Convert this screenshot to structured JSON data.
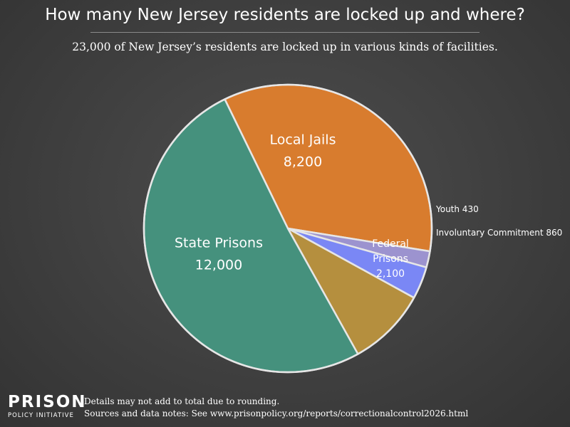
{
  "header": {
    "title": "How many New Jersey residents are locked up and where?",
    "subtitle": "23,000 of New Jersey’s residents are locked up in various kinds of facilities."
  },
  "chart_data": {
    "type": "pie",
    "slices": [
      {
        "label_lines": [
          "Local Jails",
          "8,200"
        ],
        "value": 8200,
        "color": "#d87c2e"
      },
      {
        "label_lines": [
          "Youth 430"
        ],
        "value": 430,
        "color": "#9c93cf"
      },
      {
        "label_lines": [
          "Involuntary Commitment 860"
        ],
        "value": 860,
        "color": "#7a87f5"
      },
      {
        "label_lines": [
          "Federal",
          "Prisons",
          "2,100"
        ],
        "value": 2100,
        "color": "#b58f3e"
      },
      {
        "label_lines": [
          "State Prisons",
          "12,000"
        ],
        "value": 12000,
        "color": "#45917d"
      }
    ]
  },
  "footer": {
    "logo_line1": "PRISON",
    "logo_line2": "POLICY INITIATIVE",
    "note1": "Details may not add to total due to rounding.",
    "note2": "Sources and data notes: See www.prisonpolicy.org/reports/correctionalcontrol2026.html"
  }
}
